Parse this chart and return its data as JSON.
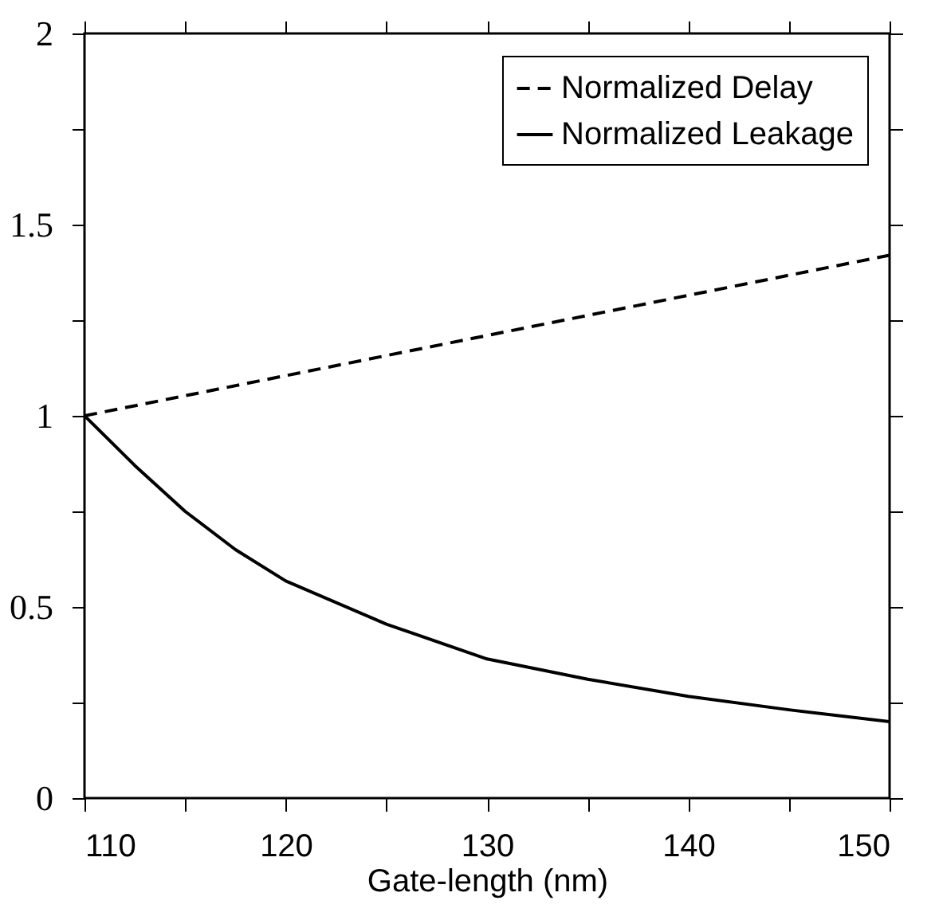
{
  "chart_data": {
    "type": "line",
    "xlabel": "Gate-length (nm)",
    "x": [
      110,
      112.5,
      115,
      117.5,
      120,
      125,
      130,
      135,
      140,
      145,
      150
    ],
    "series": [
      {
        "name": "Normalized Delay",
        "color": "#000000",
        "line_style": "dashed",
        "x": [
          110,
          150
        ],
        "values": [
          1,
          1.42
        ]
      },
      {
        "name": "Normalized Leakage",
        "color": "#000000",
        "line_style": "solid",
        "values": [
          1,
          0.87,
          0.75,
          0.65,
          0.568,
          0.455,
          0.364,
          0.311,
          0.266,
          0.231,
          0.2
        ]
      }
    ],
    "xlim": [
      110,
      150
    ],
    "ylim": [
      0,
      2
    ],
    "xticks": [
      110,
      {
        "value": 115,
        "label": null
      },
      120,
      {
        "value": 125,
        "label": null
      },
      130,
      {
        "value": 135,
        "label": null
      },
      140,
      {
        "value": 145,
        "label": null
      },
      150
    ],
    "yticks": [
      0,
      {
        "value": 0.25,
        "label": null
      },
      0.5,
      {
        "value": 0.75,
        "label": null
      },
      1,
      {
        "value": 1.25,
        "label": null
      },
      1.5,
      {
        "value": 1.75,
        "label": null
      },
      2
    ],
    "grid": false,
    "legend": "top right",
    "marker": "none"
  }
}
